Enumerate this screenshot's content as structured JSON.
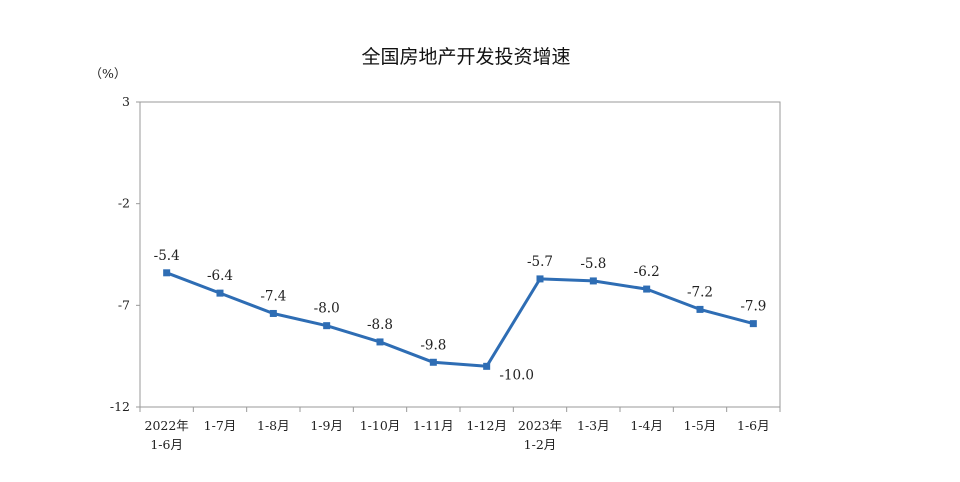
{
  "chart_data": {
    "type": "line",
    "title": "全国房地产开发投资增速",
    "unit": "（%）",
    "ylim": [
      -12,
      3
    ],
    "yticks": [
      3,
      -2,
      -7,
      -12
    ],
    "grid": false,
    "legend": "none",
    "x": [
      [
        "2022年",
        "1-6月"
      ],
      [
        "1-7月"
      ],
      [
        "1-8月"
      ],
      [
        "1-9月"
      ],
      [
        "1-10月"
      ],
      [
        "1-11月"
      ],
      [
        "1-12月"
      ],
      [
        "2023年",
        "1-2月"
      ],
      [
        "1-3月"
      ],
      [
        "1-4月"
      ],
      [
        "1-5月"
      ],
      [
        "1-6月"
      ]
    ],
    "series": [
      {
        "values": [
          -5.4,
          -6.4,
          -7.4,
          -8.0,
          -8.8,
          -9.8,
          -10.0,
          -5.7,
          -5.8,
          -6.2,
          -7.2,
          -7.9
        ],
        "labels": [
          "-5.4",
          "-6.4",
          "-7.4",
          "-8.0",
          "-8.8",
          "-9.8",
          "-10.0",
          "-5.7",
          "-5.8",
          "-6.2",
          "-7.2",
          "-7.9"
        ],
        "color": "#2e6db4"
      }
    ]
  }
}
